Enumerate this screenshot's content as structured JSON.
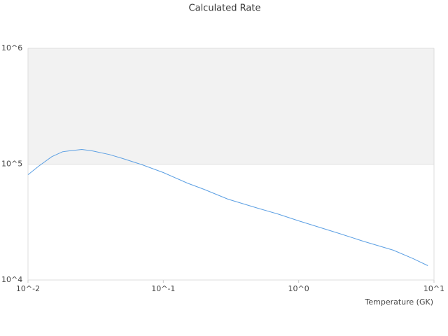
{
  "chart_data": {
    "type": "line",
    "title": "Calculated Rate",
    "x_label": "Temperature (GK)",
    "x": [
      0.01,
      0.012,
      0.015,
      0.018,
      0.02,
      0.025,
      0.03,
      0.04,
      0.05,
      0.07,
      0.1,
      0.15,
      0.2,
      0.3,
      0.5,
      0.7,
      1,
      2,
      3,
      5,
      7,
      9
    ],
    "values": [
      81000,
      96000,
      116000,
      128000,
      130000,
      134000,
      130000,
      121000,
      112000,
      98600,
      84600,
      68700,
      60600,
      49900,
      41600,
      37200,
      32400,
      25200,
      21600,
      18100,
      15300,
      13300
    ],
    "color": "#5b9fe3",
    "band_color": "#f2f2f2",
    "x_log": true,
    "y_log": true,
    "xlim": [
      0.01,
      10
    ],
    "ylim": [
      10000,
      1000000
    ],
    "xticks": [
      {
        "value": 0.01,
        "label": "10^-2"
      },
      {
        "value": 0.1,
        "label": "10^-1"
      },
      {
        "value": 1,
        "label": "10^0"
      },
      {
        "value": 10,
        "label": "10^1"
      }
    ],
    "yticks": [
      {
        "value": 10000,
        "label": "10^4"
      },
      {
        "value": 100000,
        "label": "10^5"
      },
      {
        "value": 1000000,
        "label": "10^6"
      }
    ]
  }
}
